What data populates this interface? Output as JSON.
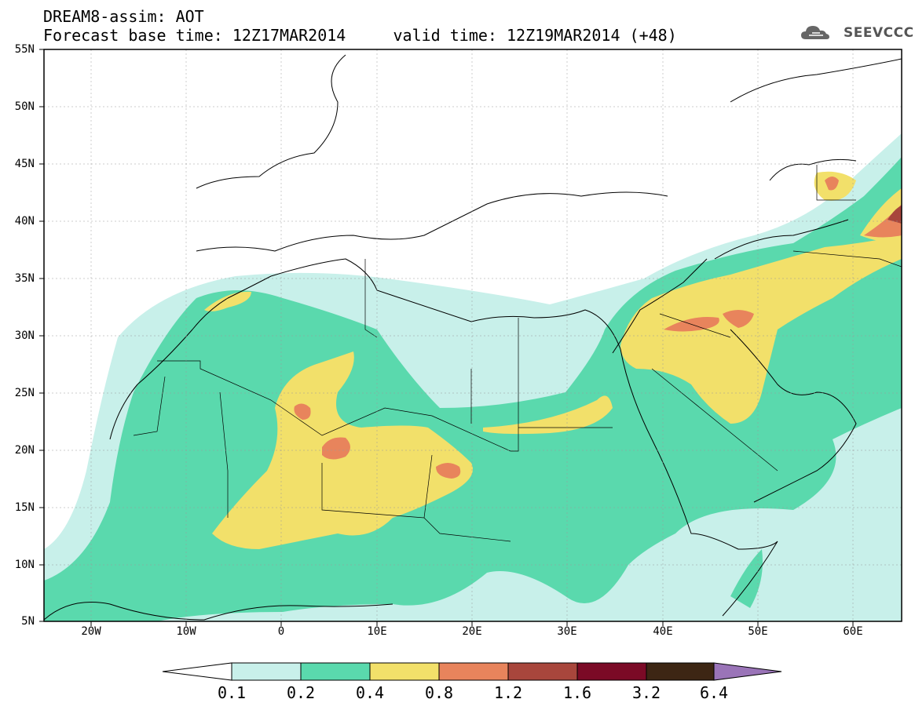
{
  "header": {
    "line1": "DREAM8-assim: AOT",
    "line2": "Forecast base time: 12Z17MAR2014     valid time: 12Z19MAR2014 (+48)",
    "logo_text": "SEEVCCC",
    "logo_icon": "cloud-icon"
  },
  "map": {
    "lon_range": [
      -25,
      65
    ],
    "lat_range": [
      5,
      55
    ],
    "lat_labels": [
      "55N",
      "50N",
      "45N",
      "40N",
      "35N",
      "30N",
      "25N",
      "20N",
      "15N",
      "10N",
      "5N"
    ],
    "lon_labels": [
      "20W",
      "10W",
      "0",
      "10E",
      "20E",
      "30E",
      "40E",
      "50E",
      "60E"
    ],
    "gridlines": true
  },
  "colorbar": {
    "labels": [
      "0.1",
      "0.2",
      "0.4",
      "0.8",
      "1.2",
      "1.6",
      "3.2",
      "6.4"
    ],
    "colors": [
      "#c8f0ea",
      "#5ad9ad",
      "#f2e06a",
      "#e8845c",
      "#a8463c",
      "#7b0a26",
      "#3d2614",
      "#9a74b8"
    ]
  }
}
